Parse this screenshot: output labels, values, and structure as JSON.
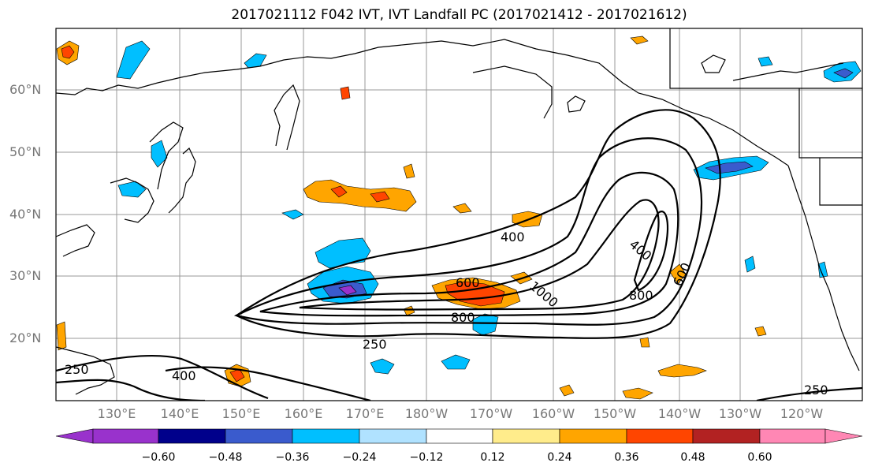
{
  "title": "2017021112 F042 IVT, IVT Landfall PC (2017021412 - 2017021612)",
  "latitude_labels": [
    "60°N",
    "50°N",
    "40°N",
    "30°N",
    "20°N"
  ],
  "longitude_labels": [
    "130°E",
    "140°E",
    "150°E",
    "160°E",
    "170°E",
    "180°W",
    "170°W",
    "160°W",
    "150°W",
    "140°W",
    "130°W",
    "120°W"
  ],
  "contour_labels": [
    "400",
    "600",
    "800",
    "1000",
    "250",
    "400",
    "800",
    "600",
    "250",
    "400",
    "250"
  ],
  "colorbar": {
    "tick_labels": [
      "−0.60",
      "−0.48",
      "−0.36",
      "−0.24",
      "−0.12",
      "0.12",
      "0.24",
      "0.36",
      "0.48",
      "0.60"
    ],
    "colors": [
      "#9932cc",
      "#00008b",
      "#3a5bcd",
      "#00bfff",
      "#b0e2ff",
      "#ffffff",
      "#ffec8b",
      "#ffa500",
      "#ff4500",
      "#b22222",
      "#ff87b4"
    ]
  }
}
